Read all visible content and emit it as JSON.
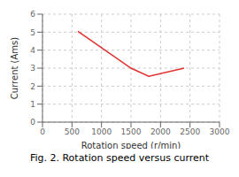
{
  "chart_data": {
    "type": "line",
    "title": "Fig. 2. Rotation speed versus current",
    "xlabel": "Rotation speed (r/min)",
    "ylabel": "Current (Ams)",
    "x": [
      600,
      1500,
      1800,
      2400
    ],
    "values": [
      5.05,
      3.0,
      2.55,
      3.0
    ],
    "color": "#e03030",
    "xlim": [
      0,
      3000
    ],
    "xticks": [
      0,
      500,
      1000,
      1500,
      2000,
      2500,
      3000
    ],
    "ylim": [
      0,
      6
    ],
    "yticks": [
      0,
      1,
      2,
      3,
      4,
      5,
      6
    ],
    "grid": true
  }
}
